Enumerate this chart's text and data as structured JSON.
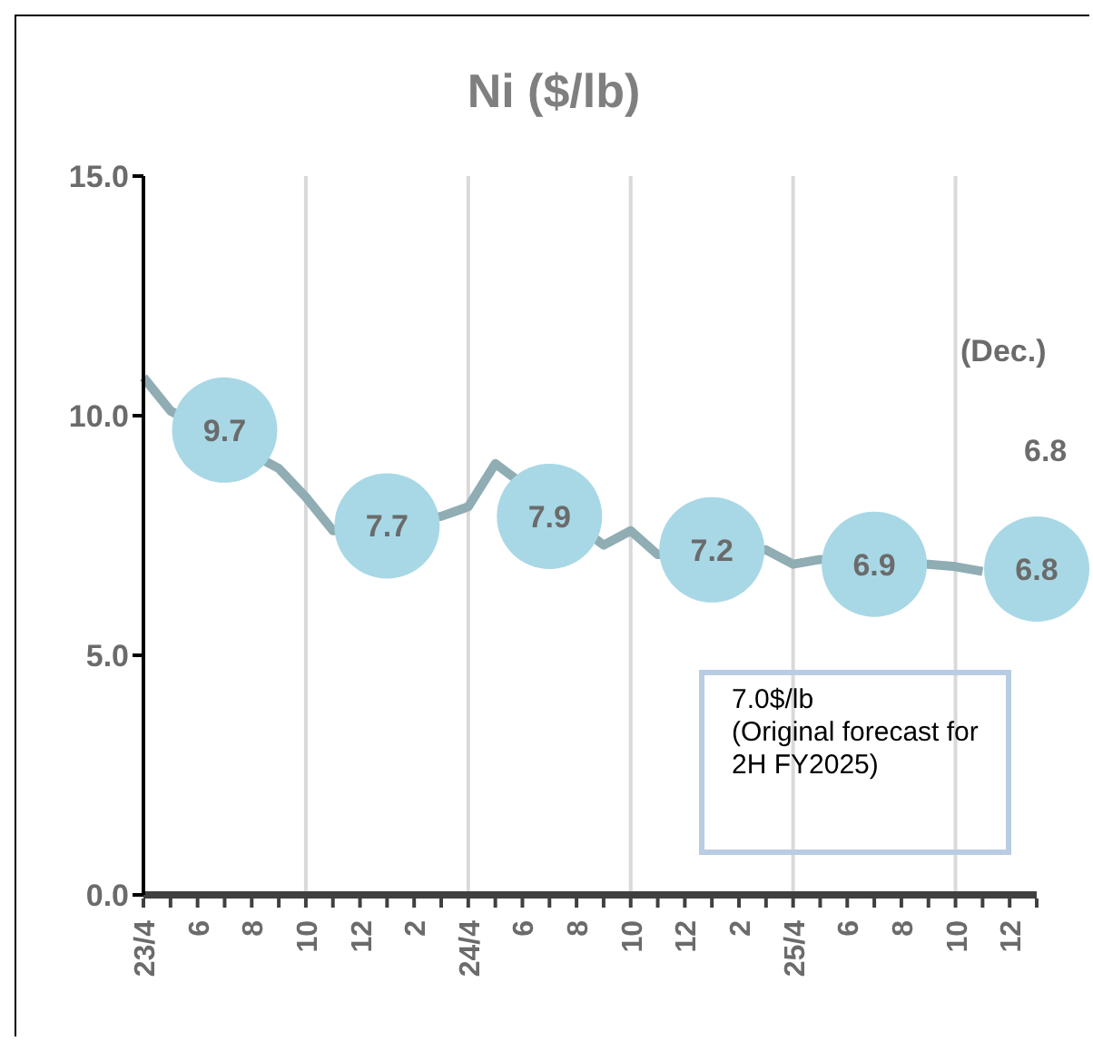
{
  "chart_data": {
    "type": "line",
    "title": "Ni ($/lb)",
    "x": [
      "2023-04",
      "2023-05",
      "2023-06",
      "2023-07",
      "2023-08",
      "2023-09",
      "2023-10",
      "2023-11",
      "2023-12",
      "2024-01",
      "2024-02",
      "2024-03",
      "2024-04",
      "2024-05",
      "2024-06",
      "2024-07",
      "2024-08",
      "2024-09",
      "2024-10",
      "2024-11",
      "2024-12",
      "2025-01",
      "2025-02",
      "2025-03",
      "2025-04",
      "2025-05",
      "2025-06",
      "2025-07",
      "2025-08",
      "2025-09",
      "2025-10",
      "2025-11"
    ],
    "xlim": [
      "2023-04",
      "2026-01"
    ],
    "xticks": [
      {
        "value": "2023-04",
        "label": "23/4"
      },
      {
        "value": "2023-05",
        "label": null
      },
      {
        "value": "2023-06",
        "label": "6"
      },
      {
        "value": "2023-07",
        "label": null
      },
      {
        "value": "2023-08",
        "label": "8"
      },
      {
        "value": "2023-09",
        "label": null
      },
      {
        "value": "2023-10",
        "label": "10"
      },
      {
        "value": "2023-11",
        "label": null
      },
      {
        "value": "2023-12",
        "label": "12"
      },
      {
        "value": "2024-01",
        "label": null
      },
      {
        "value": "2024-02",
        "label": "2"
      },
      {
        "value": "2024-03",
        "label": null
      },
      {
        "value": "2024-04",
        "label": "24/4"
      },
      {
        "value": "2024-05",
        "label": null
      },
      {
        "value": "2024-06",
        "label": "6"
      },
      {
        "value": "2024-07",
        "label": null
      },
      {
        "value": "2024-08",
        "label": "8"
      },
      {
        "value": "2024-09",
        "label": null
      },
      {
        "value": "2024-10",
        "label": "10"
      },
      {
        "value": "2024-11",
        "label": null
      },
      {
        "value": "2024-12",
        "label": "12"
      },
      {
        "value": "2025-01",
        "label": null
      },
      {
        "value": "2025-02",
        "label": "2"
      },
      {
        "value": "2025-03",
        "label": null
      },
      {
        "value": "2025-04",
        "label": "25/4"
      },
      {
        "value": "2025-05",
        "label": null
      },
      {
        "value": "2025-06",
        "label": "6"
      },
      {
        "value": "2025-07",
        "label": null
      },
      {
        "value": "2025-08",
        "label": "8"
      },
      {
        "value": "2025-09",
        "label": null
      },
      {
        "value": "2025-10",
        "label": "10"
      },
      {
        "value": "2025-11",
        "label": null
      },
      {
        "value": "2025-12",
        "label": "12"
      },
      {
        "value": "2026-01",
        "label": null
      }
    ],
    "ylim": [
      0,
      15
    ],
    "yticks": [
      {
        "value": 0,
        "label": "0.0"
      },
      {
        "value": 5,
        "label": "5.0"
      },
      {
        "value": 10,
        "label": "10.0"
      },
      {
        "value": 15,
        "label": "15.0"
      }
    ],
    "series": [
      {
        "type": "line",
        "color": "#8fadb3",
        "values": [
          10.8,
          10.1,
          null,
          null,
          null,
          8.9,
          8.3,
          7.6,
          null,
          null,
          null,
          7.9,
          8.1,
          9.0,
          null,
          null,
          null,
          7.3,
          7.6,
          7.1,
          null,
          null,
          null,
          7.2,
          6.9,
          7.0,
          null,
          null,
          null,
          6.9,
          6.85,
          6.75
        ]
      },
      {
        "type": "scatter",
        "color": "#a8d8e6",
        "marker": "circle",
        "x": [
          "2023-07",
          "2024-01",
          "2024-07",
          "2025-01",
          "2025-07",
          "2026-01"
        ],
        "values": [
          9.7,
          7.7,
          7.9,
          7.2,
          6.9,
          6.8
        ],
        "value_labels": [
          "9.7",
          "7.7",
          "7.9",
          "7.2",
          "6.9",
          "6.8"
        ]
      }
    ],
    "ref_lines": [
      {
        "axis": "x",
        "value": "2023-10",
        "color": "#d9d9d9"
      },
      {
        "axis": "x",
        "value": "2024-04",
        "color": "#d9d9d9"
      },
      {
        "axis": "x",
        "value": "2024-10",
        "color": "#d9d9d9"
      },
      {
        "axis": "x",
        "value": "2025-04",
        "color": "#d9d9d9"
      },
      {
        "axis": "x",
        "value": "2025-10",
        "color": "#d9d9d9"
      }
    ],
    "annotations": [
      "(Dec.)",
      "6.8",
      "7.0$/lb\n(Original forecast for 2H FY2025)"
    ],
    "line_style": "solid"
  }
}
